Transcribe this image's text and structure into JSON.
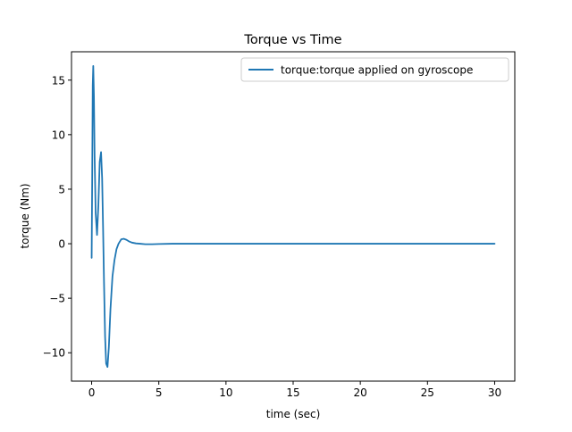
{
  "chart_data": {
    "type": "line",
    "title": "Torque vs Time",
    "xlabel": "time (sec)",
    "ylabel": "torque (Nm)",
    "xlim": [
      -1.5,
      31.5
    ],
    "ylim": [
      -12.6,
      17.6
    ],
    "xticks": [
      0,
      5,
      10,
      15,
      20,
      25,
      30
    ],
    "yticks": [
      -10,
      -5,
      0,
      5,
      10,
      15
    ],
    "xtick_labels": [
      "0",
      "5",
      "10",
      "15",
      "20",
      "25",
      "30"
    ],
    "ytick_labels": [
      "−10",
      "−5",
      "0",
      "5",
      "10",
      "15"
    ],
    "grid": false,
    "legend_position": "top-right",
    "series": [
      {
        "name": "torque:torque applied on gyroscope",
        "color": "#1f77b4",
        "x": [
          0,
          0.04,
          0.08,
          0.12,
          0.17,
          0.22,
          0.3,
          0.4,
          0.5,
          0.6,
          0.7,
          0.78,
          0.85,
          0.92,
          1.0,
          1.08,
          1.18,
          1.28,
          1.4,
          1.55,
          1.7,
          1.85,
          2.0,
          2.2,
          2.4,
          2.6,
          2.8,
          3.0,
          3.3,
          3.6,
          4.0,
          4.5,
          5.0,
          6.0,
          8.0,
          10.0,
          15.0,
          20.0,
          25.0,
          30.0
        ],
        "y": [
          -1.3,
          6.0,
          14.5,
          16.3,
          13.5,
          8.0,
          2.8,
          0.8,
          3.5,
          7.5,
          8.4,
          6.0,
          1.5,
          -3.5,
          -8.5,
          -11.0,
          -11.3,
          -9.5,
          -6.0,
          -3.0,
          -1.5,
          -0.5,
          0.0,
          0.4,
          0.45,
          0.35,
          0.2,
          0.1,
          0.03,
          0.0,
          -0.05,
          -0.05,
          -0.03,
          0.0,
          0.0,
          0.0,
          0.0,
          0.0,
          0.0,
          0.0
        ]
      }
    ]
  }
}
